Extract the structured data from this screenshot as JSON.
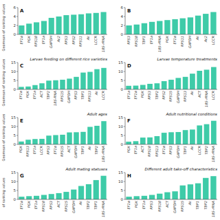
{
  "chart_data": [
    {
      "type": "bar",
      "annotations": [
        "A"
      ],
      "ylabel": "Geomean of ranking values",
      "categories": [
        "EF1α",
        "PGK",
        "RPS18",
        "EF1a",
        "GAPDH",
        "Ac2",
        "RPS3",
        "RPS2",
        "RPS11",
        "Ak",
        "LCCR",
        "18S-rRNA"
      ],
      "values": [
        2.0,
        2.4,
        2.7,
        3.0,
        3.7,
        4.0,
        4.3,
        4.4,
        4.5,
        4.7,
        4.8,
        5.0
      ],
      "color": "#3ecba8",
      "ylim": [
        0,
        6
      ],
      "yticks": [
        0,
        2,
        4,
        6
      ],
      "grid": false
    },
    {
      "type": "bar",
      "annotations": [
        "B"
      ],
      "categories": [
        "RPS3",
        "RPS18",
        "TBP1",
        "EF1a",
        "18S-rRNA",
        "PGK",
        "EF1α",
        "RPS11",
        "GAPDH",
        "Ak",
        "Ac2",
        "LCCR"
      ],
      "values": [
        2.0,
        2.2,
        2.5,
        2.8,
        3.0,
        3.2,
        3.4,
        3.6,
        3.8,
        4.2,
        4.6,
        5.0
      ],
      "color": "#3ecba8",
      "ylim": [
        0,
        6
      ],
      "yticks": [
        0,
        2,
        4,
        6
      ],
      "grid": false
    },
    {
      "type": "bar",
      "annotations": [
        "C"
      ],
      "title": "Larvae feeding on different rice varieties",
      "ylabel": "Geomean of ranking values",
      "categories": [
        "EF1α",
        "PGK",
        "EF1a",
        "ACT",
        "TBP2",
        "18S-RNA",
        "RPS15",
        "GAPDH",
        "RPS3",
        "TBP1",
        "RPS13",
        "Ak",
        "LCCR"
      ],
      "values": [
        1.4,
        1.6,
        2.4,
        3.4,
        4.9,
        5.1,
        5.4,
        6.0,
        7.0,
        9.4,
        9.8,
        11.3,
        12.0
      ],
      "color": "#3ecba8",
      "ylim": [
        0,
        15
      ],
      "yticks": [
        0,
        5,
        10,
        15
      ],
      "grid": false
    },
    {
      "type": "bar",
      "annotations": [
        "D"
      ],
      "title": "Larvae temperature treatments",
      "categories": [
        "EF1a",
        "EF1α",
        "PGK",
        "RPS3",
        "TBP2",
        "RPS2",
        "RPS15",
        "GAPDH",
        "RPS13",
        "Ak",
        "ACT",
        "18S-rRNA",
        "LCCR"
      ],
      "values": [
        2.0,
        2.1,
        2.5,
        3.1,
        3.4,
        4.6,
        5.4,
        6.4,
        7.0,
        8.8,
        10.4,
        11.0,
        12.5
      ],
      "color": "#3ecba8",
      "ylim": [
        0,
        15
      ],
      "yticks": [
        0,
        5,
        10,
        15
      ],
      "grid": false
    },
    {
      "type": "bar",
      "annotations": [
        "E"
      ],
      "title": "Adult ages",
      "ylabel": "Geomean of ranking values",
      "categories": [
        "PGK",
        "RPS13",
        "EF1a",
        "LCCR",
        "RPS3",
        "EF1α",
        "RPS15",
        "ACT",
        "GAPDH",
        "TBP1",
        "Ak",
        "TBP2",
        "18S-rRNA"
      ],
      "values": [
        1.6,
        2.6,
        3.0,
        3.1,
        4.9,
        5.2,
        5.4,
        6.7,
        6.8,
        7.0,
        9.8,
        10.4,
        13.0
      ],
      "color": "#3ecba8",
      "ylim": [
        0,
        15
      ],
      "yticks": [
        0,
        5,
        10,
        15
      ],
      "grid": false
    },
    {
      "type": "bar",
      "annotations": [
        "F"
      ],
      "title": "Adult nutritional conditions",
      "categories": [
        "PGK",
        "EF1a",
        "ACT",
        "RPS18",
        "RPS13",
        "EF1α",
        "RPS3",
        "GAPDH",
        "TBP1",
        "Ak",
        "LCCR",
        "TBP2",
        "18S-rRNA"
      ],
      "values": [
        1.5,
        1.8,
        3.8,
        3.9,
        4.6,
        6.5,
        6.8,
        6.9,
        8.0,
        8.3,
        10.6,
        11.3,
        13.2
      ],
      "color": "#3ecba8",
      "ylim": [
        0,
        15
      ],
      "yticks": [
        0,
        5,
        10,
        15
      ],
      "grid": false
    },
    {
      "type": "bar",
      "annotations": [
        "G"
      ],
      "title": "Adult mating statuses",
      "ylabel": "of ranking values",
      "categories": [
        "EF1α",
        "PGK",
        "EF1a",
        "RPS18",
        "RPS3",
        "ACT",
        "RPS15",
        "GAPDH",
        "Ak",
        "TBP2",
        "TBP1",
        "18S-rRNA"
      ],
      "values": [
        1.5,
        1.8,
        2.0,
        2.5,
        3.0,
        3.5,
        4.2,
        5.5,
        7.5,
        8.5,
        10.8,
        13.2
      ],
      "color": "#3ecba8",
      "ylim": [
        0,
        15
      ],
      "yticks": [
        0,
        5,
        10,
        15
      ],
      "grid": false
    },
    {
      "type": "bar",
      "annotations": [
        "H"
      ],
      "title": "Different adult take-off characteristics",
      "categories": [
        "EF1α",
        "PGK",
        "EF1a",
        "RPS3",
        "RPS18",
        "ACT",
        "GAPDH",
        "RPS15",
        "Ak",
        "TBP1",
        "TBP2",
        "18S-rRNA"
      ],
      "values": [
        1.5,
        1.8,
        2.0,
        2.5,
        3.2,
        4.0,
        4.5,
        7.8,
        8.4,
        9.0,
        12.0,
        13.0
      ],
      "color": "#3ecba8",
      "ylim": [
        0,
        15
      ],
      "yticks": [
        0,
        5,
        10,
        15
      ],
      "grid": false
    }
  ]
}
